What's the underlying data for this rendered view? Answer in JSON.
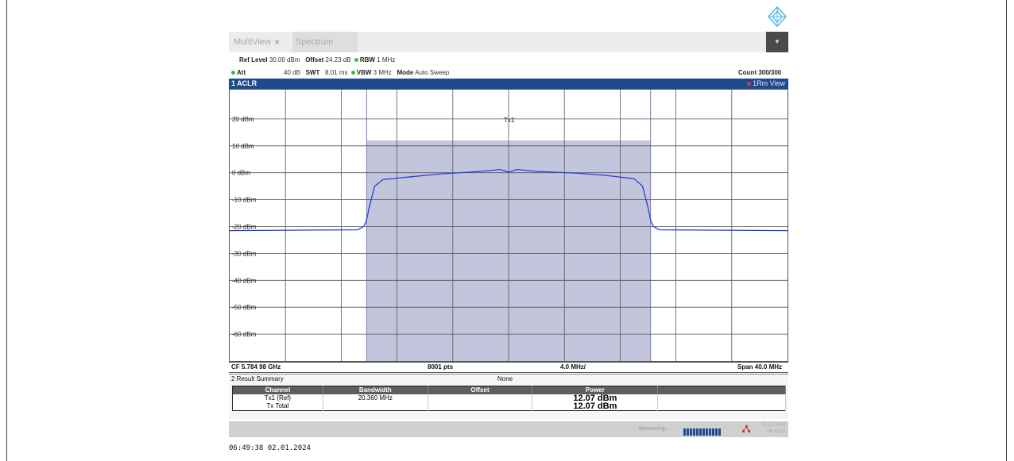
{
  "logo": {
    "icon": "rohde-schwarz-diamond-logo",
    "color": "#5bb8e8"
  },
  "tabs": [
    {
      "label": "MultiView",
      "active": false
    },
    {
      "label": "Spectrum",
      "active": false
    }
  ],
  "menu_button": {
    "icon": "chevron-down-icon"
  },
  "settings": {
    "ref_level_label": "Ref Level",
    "ref_level_value": "30.00 dBm",
    "offset_label": "Offset",
    "offset_value": "24.23 dB",
    "rbw_label": "RBW",
    "rbw_value": "1 MHz",
    "att_label": "Att",
    "att_value": "40 dB",
    "swt_label": "SWT",
    "swt_value": "8.01 ms",
    "vbw_label": "VBW",
    "vbw_value": "3 MHz",
    "mode_label": "Mode",
    "mode_value": "Auto Sweep",
    "count": "Count 300/300"
  },
  "window": {
    "title": "1 ACLR",
    "trace_view": "1Rm View"
  },
  "chart_data": {
    "type": "line",
    "ylabel_ticks": [
      "20 dBm",
      "10 dBm",
      "0 dBm",
      "-10 dBm",
      "-20 dBm",
      "-30 dBm",
      "-40 dBm",
      "-50 dBm",
      "-60 dBm"
    ],
    "y_tick_values": [
      20,
      10,
      0,
      -10,
      -20,
      -30,
      -40,
      -50,
      -60
    ],
    "ylim": [
      -70,
      30
    ],
    "xlim_mhz": [
      -20,
      20
    ],
    "x_divisions": 10,
    "grid": true,
    "channel_label": "Tx1",
    "channel_bandwidth_mhz": 20.36,
    "channel_band_top_dbm": 12,
    "trace_color": "#2a3fd6",
    "band_color": "#b8bbd6",
    "trace": {
      "x_mhz": [
        -20,
        -10.8,
        -10.4,
        -10.2,
        -10.0,
        -9.6,
        -9.0,
        -7.0,
        -5.0,
        -2.0,
        -0.6,
        0,
        0.6,
        2.0,
        5.0,
        7.0,
        9.0,
        9.6,
        10.0,
        10.2,
        10.4,
        10.8,
        20
      ],
      "y_dbm": [
        -21.5,
        -21.2,
        -20.0,
        -18.0,
        -13.0,
        -5.0,
        -2.5,
        -1.5,
        -0.5,
        0.5,
        1.2,
        0.2,
        1.2,
        0.5,
        -0.2,
        -1.0,
        -2.2,
        -5.0,
        -13.0,
        -18.0,
        -20.0,
        -21.2,
        -21.5
      ]
    }
  },
  "footer": {
    "cf": "CF 5.784 98 GHz",
    "pts": "8001 pts",
    "div": "4.0 MHz/",
    "span": "Span 40.0 MHz"
  },
  "result_summary": {
    "title": "2 Result Summary",
    "mode": "None",
    "headers": [
      "Channel",
      "Bandwidth",
      "Offset",
      "Power"
    ],
    "rows": [
      {
        "channel": "Tx1 (Ref)",
        "bandwidth": "20.360 MHz",
        "offset": "",
        "power": "12.07 dBm"
      },
      {
        "channel": "Tx Total",
        "bandwidth": "",
        "offset": "",
        "power": "12.07 dBm"
      }
    ]
  },
  "status": {
    "measuring": "Measuring...",
    "progress": 1.0,
    "date": "02.01.2024",
    "time": "06:49:37"
  },
  "timestamp": "06:49:38  02.01.2024"
}
